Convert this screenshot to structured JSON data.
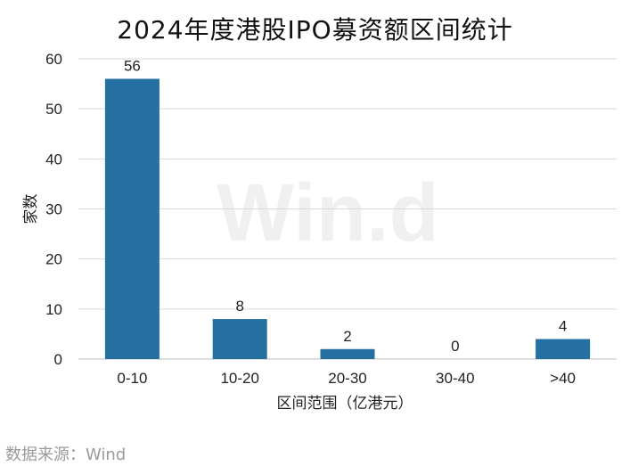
{
  "title": "2024年度港股IPO募资额区间统计",
  "source": "数据来源：Wind",
  "watermark": "Win.d",
  "colors": {
    "bar": "#2470a0",
    "grid": "#d9d9d9",
    "axis": "#bfbfbf",
    "text": "#222222"
  },
  "chart_data": {
    "type": "bar",
    "title": "2024年度港股IPO募资额区间统计",
    "categories": [
      "0-10",
      "10-20",
      "20-30",
      "30-40",
      ">40"
    ],
    "values": [
      56,
      8,
      2,
      0,
      4
    ],
    "xlabel": "区间范围（亿港元）",
    "ylabel": "家数",
    "ylim": [
      0,
      60
    ],
    "yticks": [
      0,
      10,
      20,
      30,
      40,
      50,
      60
    ],
    "grid": true,
    "data_labels": true
  }
}
